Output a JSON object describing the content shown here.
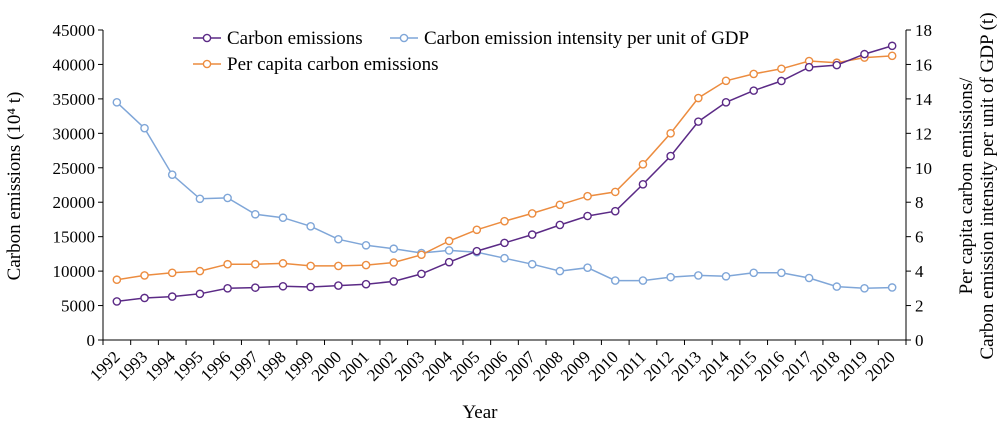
{
  "chart_data": {
    "type": "line",
    "xlabel": "Year",
    "ylabel_left": "Carbon emissions (10⁴ t)",
    "ylabel_right_line1": "Per capita carbon emissions/",
    "ylabel_right_line2": "Carbon emission intensity per unit of GDP (t)",
    "categories": [
      "1992",
      "1993",
      "1994",
      "1995",
      "1996",
      "1997",
      "1998",
      "1999",
      "2000",
      "2001",
      "2002",
      "2003",
      "2004",
      "2005",
      "2006",
      "2007",
      "2008",
      "2009",
      "2010",
      "2011",
      "2012",
      "2013",
      "2014",
      "2015",
      "2016",
      "2017",
      "2018",
      "2019",
      "2020"
    ],
    "y_left_range": [
      0,
      45000
    ],
    "y_left_ticks": [
      "0",
      "5000",
      "10000",
      "15000",
      "20000",
      "25000",
      "30000",
      "35000",
      "40000",
      "45000"
    ],
    "y_right_range": [
      0,
      18
    ],
    "y_right_ticks": [
      "0",
      "2",
      "4",
      "6",
      "8",
      "10",
      "12",
      "14",
      "16",
      "18"
    ],
    "legend_position": "top",
    "series": [
      {
        "name": "Carbon emissions",
        "axis": "left",
        "color": "#5b2a86",
        "values": [
          5600,
          6100,
          6300,
          6700,
          7500,
          7600,
          7800,
          7700,
          7900,
          8100,
          8500,
          9600,
          11300,
          12900,
          14100,
          15300,
          16700,
          18000,
          18700,
          22600,
          26700,
          31700,
          34500,
          36200,
          37600,
          39600,
          39900,
          41500,
          42700
        ]
      },
      {
        "name": "Carbon emission intensity per unit of GDP",
        "axis": "right",
        "color": "#7fa6d8",
        "values": [
          13.8,
          12.3,
          9.6,
          8.2,
          8.25,
          7.3,
          7.1,
          6.6,
          5.85,
          5.5,
          5.3,
          5.05,
          5.2,
          5.1,
          4.75,
          4.4,
          4.0,
          4.2,
          3.45,
          3.45,
          3.65,
          3.75,
          3.7,
          3.9,
          3.9,
          3.6,
          3.1,
          3.0,
          3.05
        ]
      },
      {
        "name": "Per capita carbon emissions",
        "axis": "right",
        "color": "#ec8c3f",
        "values": [
          3.5,
          3.75,
          3.9,
          4.0,
          4.4,
          4.4,
          4.45,
          4.3,
          4.3,
          4.35,
          4.5,
          4.95,
          5.75,
          6.4,
          6.9,
          7.35,
          7.85,
          8.35,
          8.6,
          10.2,
          12.0,
          14.05,
          15.05,
          15.45,
          15.75,
          16.2,
          16.1,
          16.4,
          16.5
        ]
      }
    ]
  }
}
